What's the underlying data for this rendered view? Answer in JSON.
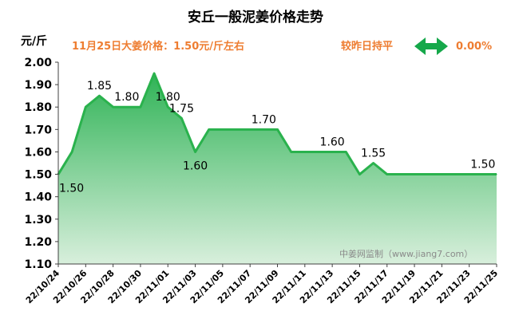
{
  "header": {
    "title": "安丘一般泥姜价格走势",
    "unit": "元/斤",
    "price_summary": "11月25日大姜价格：1.50元/斤左右",
    "trend_text": "较昨日持平",
    "trend_icon": "double-arrow-icon",
    "change": "0.00%"
  },
  "watermark": "中姜网监制（www.jiang7.com）",
  "colors": {
    "line": "#2ab24d",
    "area_top": "#2fb356",
    "area_bottom": "#d8efdc",
    "accent_orange": "#ee7d31",
    "arrow_green": "#15a84a",
    "axis": "#404040",
    "grid": "#d9d9d9"
  },
  "chart_data": {
    "type": "area",
    "x": [
      "22/10/24",
      "22/10/25",
      "22/10/26",
      "22/10/27",
      "22/10/28",
      "22/10/29",
      "22/10/30",
      "22/10/31",
      "22/11/01",
      "22/11/02",
      "22/11/03",
      "22/11/04",
      "22/11/05",
      "22/11/06",
      "22/11/07",
      "22/11/08",
      "22/11/09",
      "22/11/10",
      "22/11/11",
      "22/11/12",
      "22/11/13",
      "22/11/14",
      "22/11/15",
      "22/11/16",
      "22/11/17",
      "22/11/18",
      "22/11/19",
      "22/11/20",
      "22/11/21",
      "22/11/22",
      "22/11/23",
      "22/11/24",
      "22/11/25"
    ],
    "values": [
      1.5,
      1.6,
      1.8,
      1.85,
      1.8,
      1.8,
      1.8,
      1.95,
      1.8,
      1.75,
      1.6,
      1.7,
      1.7,
      1.7,
      1.7,
      1.7,
      1.7,
      1.6,
      1.6,
      1.6,
      1.6,
      1.6,
      1.5,
      1.55,
      1.5,
      1.5,
      1.5,
      1.5,
      1.5,
      1.5,
      1.5,
      1.5,
      1.5
    ],
    "x_tick_labels": [
      "22/10/24",
      "22/10/26",
      "22/10/28",
      "22/10/30",
      "22/11/01",
      "22/11/03",
      "22/11/05",
      "22/11/07",
      "22/11/09",
      "22/11/11",
      "22/11/13",
      "22/11/15",
      "22/11/17",
      "22/11/19",
      "22/11/21",
      "22/11/23",
      "22/11/25"
    ],
    "y_ticks": [
      "1.10",
      "1.20",
      "1.30",
      "1.40",
      "1.50",
      "1.60",
      "1.70",
      "1.80",
      "1.90",
      "2.00"
    ],
    "ylim": [
      1.1,
      2.0
    ],
    "data_labels": [
      {
        "index": 0,
        "text": "1.50",
        "pos": "below"
      },
      {
        "index": 3,
        "text": "1.85",
        "pos": "above"
      },
      {
        "index": 5,
        "text": "1.80",
        "pos": "above"
      },
      {
        "index": 8,
        "text": "1.80",
        "pos": "above"
      },
      {
        "index": 9,
        "text": "1.75",
        "pos": "above"
      },
      {
        "index": 10,
        "text": "1.60",
        "pos": "below"
      },
      {
        "index": 15,
        "text": "1.70",
        "pos": "above"
      },
      {
        "index": 20,
        "text": "1.60",
        "pos": "above"
      },
      {
        "index": 23,
        "text": "1.55",
        "pos": "above"
      },
      {
        "index": 31,
        "text": "1.50",
        "pos": "above"
      }
    ],
    "grid": false
  }
}
